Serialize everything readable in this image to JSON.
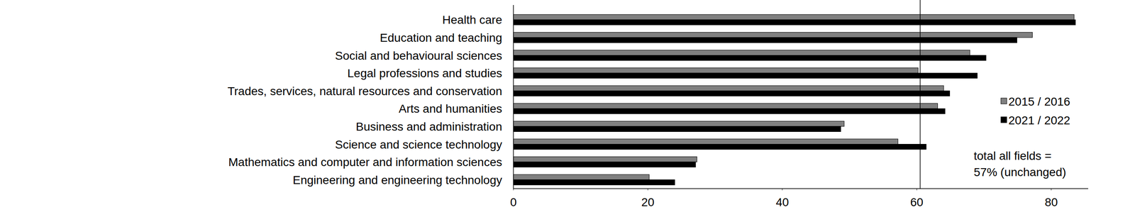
{
  "chart_data": {
    "type": "bar",
    "orientation": "horizontal",
    "categories": [
      "Health care",
      "Education and teaching",
      "Social and behavioural sciences",
      "Legal professions and studies",
      "Trades, services, natural resources and conservation",
      "Arts and humanities",
      "Business and administration",
      "Science and science technology",
      "Mathematics and computer and information sciences",
      "Engineering and engineering technology"
    ],
    "series": [
      {
        "name": "2015 / 2016",
        "color": "#808080",
        "values": [
          83.4,
          77.2,
          67.9,
          60.2,
          64.0,
          63.1,
          49.2,
          57.2,
          27.3,
          20.2
        ]
      },
      {
        "name": "2021 / 2022",
        "color": "#000000",
        "values": [
          83.6,
          74.9,
          70.3,
          69.0,
          64.9,
          64.2,
          48.7,
          61.4,
          27.1,
          24.0
        ]
      }
    ],
    "xlim": [
      0,
      85.5
    ],
    "xticks": [
      0,
      20,
      40,
      60,
      80
    ],
    "reference_value": 60.5,
    "annotation": [
      "total all fields =",
      "57% (unchanged)"
    ],
    "legend": "right",
    "grid": false
  }
}
